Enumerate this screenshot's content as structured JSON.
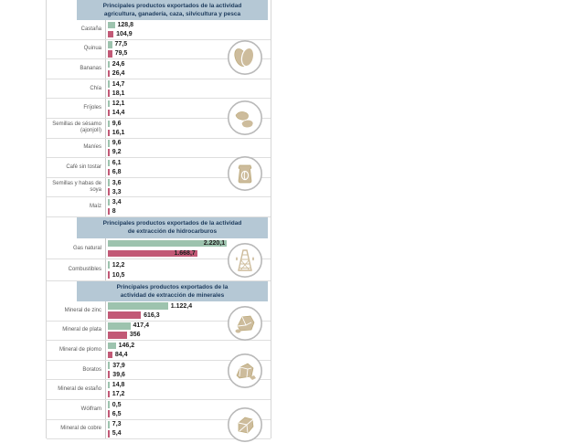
{
  "colors": {
    "header_bg": "#b5c8d5",
    "header_text": "#1c3a5c",
    "green": "#9dc3ae",
    "pink": "#c25976",
    "label": "#5a5a5a",
    "value": "#1d1d1d"
  },
  "bar_scale": 0.0586,
  "sections": [
    {
      "header": [
        "Principales productos exportados de la actividad",
        "agricultura, ganadería, caza, silvicultura y pesca"
      ],
      "icons": [
        "almonds-icon",
        "beans-icon",
        "coffee-bag-icon"
      ],
      "rows": [
        {
          "label": "Castaña",
          "g": 128.8,
          "g_disp": "128,8",
          "p": 104.9,
          "p_disp": "104,9"
        },
        {
          "label": "Quinua",
          "g": 77.5,
          "g_disp": "77,5",
          "p": 79.5,
          "p_disp": "79,5"
        },
        {
          "label": "Bananas",
          "g": 24.6,
          "g_disp": "24,6",
          "p": 26.4,
          "p_disp": "26,4"
        },
        {
          "label": "Chía",
          "g": 14.7,
          "g_disp": "14,7",
          "p": 18.1,
          "p_disp": "18,1"
        },
        {
          "label": "Fríjoles",
          "g": 12.1,
          "g_disp": "12,1",
          "p": 14.4,
          "p_disp": "14,4"
        },
        {
          "label": "Semillas de sésamo (ajonjolí)",
          "g": 9.6,
          "g_disp": "9,6",
          "p": 16.1,
          "p_disp": "16,1"
        },
        {
          "label": "Maníes",
          "g": 9.6,
          "g_disp": "9,6",
          "p": 9.2,
          "p_disp": "9,2"
        },
        {
          "label": "Café sin tostar",
          "g": 6.1,
          "g_disp": "6,1",
          "p": 6.8,
          "p_disp": "6,8"
        },
        {
          "label": "Semillas y habas de soya",
          "g": 3.6,
          "g_disp": "3,6",
          "p": 3.3,
          "p_disp": "3,3"
        },
        {
          "label": "Maíz",
          "g": 3.4,
          "g_disp": "3,4",
          "p": 8,
          "p_disp": "8"
        }
      ]
    },
    {
      "header": [
        "Principales productos exportados de la actividad",
        "de extracción de hidrocarburos"
      ],
      "icons": [
        "oil-derrick-icon"
      ],
      "rows": [
        {
          "label": "Gas natural",
          "g": 2220.1,
          "g_disp": "2.220,1",
          "p": 1668.7,
          "p_disp": "1.668,7"
        },
        {
          "label": "Combustibles",
          "g": 12.2,
          "g_disp": "12,2",
          "p": 10.5,
          "p_disp": "10,5"
        }
      ]
    },
    {
      "header": [
        "Principales productos exportados de la",
        "actividad de extracción de minerales"
      ],
      "icons": [
        "mineral-rock-icon",
        "borate-rocks-icon",
        "copper-blocks-icon"
      ],
      "rows": [
        {
          "label": "Mineral de zinc",
          "g": 1122.4,
          "g_disp": "1.122,4",
          "p": 616.3,
          "p_disp": "616,3"
        },
        {
          "label": "Mineral de plata",
          "g": 417.4,
          "g_disp": "417,4",
          "p": 356,
          "p_disp": "356"
        },
        {
          "label": "Mineral de plomo",
          "g": 146.2,
          "g_disp": "146,2",
          "p": 84.4,
          "p_disp": "84,4"
        },
        {
          "label": "Boratos",
          "g": 37.9,
          "g_disp": "37,9",
          "p": 39.6,
          "p_disp": "39,6"
        },
        {
          "label": "Mineral de estaño",
          "g": 14.8,
          "g_disp": "14,8",
          "p": 17.2,
          "p_disp": "17,2"
        },
        {
          "label": "Wólfram",
          "g": 0.5,
          "g_disp": "0,5",
          "p": 6.5,
          "p_disp": "6,5"
        },
        {
          "label": "Mineral de cobre",
          "g": 7.3,
          "g_disp": "7,3",
          "p": 5.4,
          "p_disp": "5,4"
        }
      ]
    }
  ],
  "chart_data": [
    {
      "type": "bar",
      "orientation": "horizontal",
      "title": "Principales productos exportados de la actividad agricultura, ganadería, caza, silvicultura y pesca",
      "categories": [
        "Castaña",
        "Quinua",
        "Bananas",
        "Chía",
        "Fríjoles",
        "Semillas de sésamo (ajonjolí)",
        "Maníes",
        "Café sin tostar",
        "Semillas y habas de soya",
        "Maíz"
      ],
      "series": [
        {
          "name": "serie verde",
          "color": "#9dc3ae",
          "values": [
            128.8,
            77.5,
            24.6,
            14.7,
            12.1,
            9.6,
            9.6,
            6.1,
            3.6,
            3.4
          ]
        },
        {
          "name": "serie rosa",
          "color": "#c25976",
          "values": [
            104.9,
            79.5,
            26.4,
            18.1,
            14.4,
            16.1,
            9.2,
            6.8,
            3.3,
            8
          ]
        }
      ],
      "xlim": [
        0,
        2300
      ],
      "grid": false,
      "legend": false
    },
    {
      "type": "bar",
      "orientation": "horizontal",
      "title": "Principales productos exportados de la actividad de extracción de hidrocarburos",
      "categories": [
        "Gas natural",
        "Combustibles"
      ],
      "series": [
        {
          "name": "serie verde",
          "color": "#9dc3ae",
          "values": [
            2220.1,
            12.2
          ]
        },
        {
          "name": "serie rosa",
          "color": "#c25976",
          "values": [
            1668.7,
            10.5
          ]
        }
      ],
      "xlim": [
        0,
        2300
      ],
      "grid": false,
      "legend": false
    },
    {
      "type": "bar",
      "orientation": "horizontal",
      "title": "Principales productos exportados de la actividad de extracción de minerales",
      "categories": [
        "Mineral de zinc",
        "Mineral de plata",
        "Mineral de plomo",
        "Boratos",
        "Mineral de estaño",
        "Wólfram",
        "Mineral de cobre"
      ],
      "series": [
        {
          "name": "serie verde",
          "color": "#9dc3ae",
          "values": [
            1122.4,
            417.4,
            146.2,
            37.9,
            14.8,
            0.5,
            7.3
          ]
        },
        {
          "name": "serie rosa",
          "color": "#c25976",
          "values": [
            616.3,
            356,
            84.4,
            39.6,
            17.2,
            6.5,
            5.4
          ]
        }
      ],
      "xlim": [
        0,
        2300
      ],
      "grid": false,
      "legend": false
    }
  ]
}
